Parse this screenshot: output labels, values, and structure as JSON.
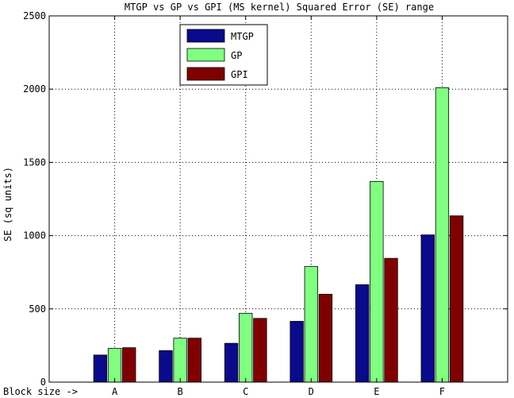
{
  "chart_data": {
    "type": "bar",
    "title": "MTGP vs GP vs GPI (MS kernel) Squared Error (SE) range",
    "xlabel": "Block size ->",
    "ylabel": "SE (sq units)",
    "categories": [
      "A",
      "B",
      "C",
      "D",
      "E",
      "F"
    ],
    "ylim": [
      0,
      2500
    ],
    "yticks": [
      0,
      500,
      1000,
      1500,
      2000,
      2500
    ],
    "grid": true,
    "legend_position": "top-center",
    "series": [
      {
        "name": "MTGP",
        "color": "#0a0a8c",
        "values": [
          185,
          215,
          265,
          415,
          665,
          1005
        ]
      },
      {
        "name": "GP",
        "color": "#80ff80",
        "values": [
          230,
          300,
          470,
          790,
          1370,
          2010
        ]
      },
      {
        "name": "GPI",
        "color": "#800000",
        "values": [
          235,
          300,
          435,
          600,
          845,
          1135
        ]
      }
    ]
  }
}
